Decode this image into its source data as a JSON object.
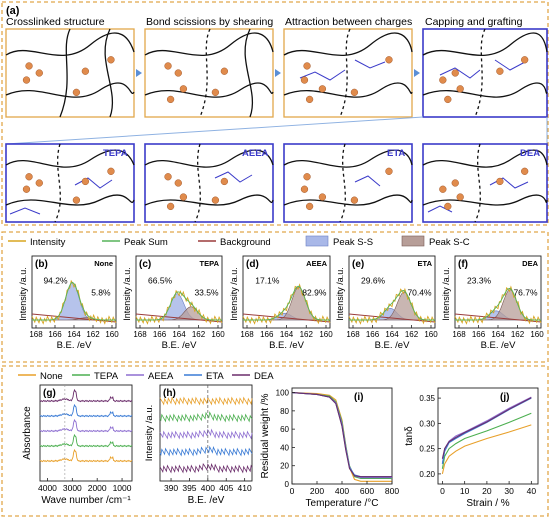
{
  "panel_a": {
    "letter": "(a)",
    "top_titles": [
      "Crosslinked structure",
      "Bond scissions by shearing",
      "Attraction between charges",
      "Capping and grafting"
    ],
    "bottom_labels": [
      "TEPA",
      "AEEA",
      "ETA",
      "DEA"
    ],
    "colors": {
      "frame_orange": "#e1a84a",
      "frame_blue": "#3b3bc9",
      "arrow_blue": "#5b8fd6",
      "bead": "#e08b4c"
    }
  },
  "xps_legend": {
    "items": [
      "Intensity",
      "Peak Sum",
      "Background",
      "Peak S-S",
      "Peak S-C"
    ],
    "colors": [
      "#d9a521",
      "#57b45a",
      "#9b3b3b",
      "#a9b8e8",
      "#b79e98"
    ]
  },
  "xps_panels": [
    {
      "letter": "(b)",
      "name": "None",
      "pct_ss": "94.2%",
      "pct_sc": "5.8%"
    },
    {
      "letter": "(c)",
      "name": "TEPA",
      "pct_ss": "66.5%",
      "pct_sc": "33.5%"
    },
    {
      "letter": "(d)",
      "name": "AEEA",
      "pct_ss": "17.1%",
      "pct_sc": "82.9%"
    },
    {
      "letter": "(e)",
      "name": "ETA",
      "pct_ss": "29.6%",
      "pct_sc": "70.4%"
    },
    {
      "letter": "(f)",
      "name": "DEA",
      "pct_ss": "23.3%",
      "pct_sc": "76.7%"
    }
  ],
  "xps_axis": {
    "ylabel": "Intensity /a.u.",
    "xlabel": "B.E. /eV",
    "ticks": [
      "168",
      "166",
      "164",
      "162",
      "160"
    ]
  },
  "bottom_legend": {
    "items": [
      "None",
      "TEPA",
      "AEEA",
      "ETA",
      "DEA"
    ],
    "colors": [
      "#e8a02a",
      "#4caf50",
      "#8e6fd1",
      "#3a7bd5",
      "#6b2d6b"
    ]
  },
  "chart_data": [
    {
      "type": "line",
      "letter": "(g)",
      "ylabel": "Absorbance",
      "xlabel": "Wave number /cm⁻¹",
      "x_ticks": [
        "4000",
        "3000",
        "2000",
        "1000"
      ],
      "xlim": [
        4300,
        600
      ],
      "series_names": [
        "None",
        "TEPA",
        "AEEA",
        "ETA",
        "DEA"
      ]
    },
    {
      "type": "line",
      "letter": "(h)",
      "ylabel": "Intensity /a.u.",
      "xlabel": "B.E. /eV",
      "x_ticks": [
        "390",
        "395",
        "400",
        "405",
        "410"
      ],
      "xlim": [
        387,
        412
      ]
    },
    {
      "type": "line",
      "letter": "(i)",
      "ylabel": "Residual weight /%",
      "xlabel": "Temperature /°C",
      "x_ticks": [
        "0",
        "200",
        "400",
        "600",
        "800"
      ],
      "y_ticks": [
        "0",
        "20",
        "40",
        "60",
        "80",
        "100"
      ],
      "xlim": [
        0,
        800
      ],
      "ylim": [
        0,
        105
      ],
      "series": [
        {
          "name": "None",
          "x": [
            0,
            200,
            300,
            350,
            400,
            430,
            460,
            500,
            550,
            800
          ],
          "y": [
            100,
            99,
            97,
            92,
            70,
            42,
            18,
            5,
            3,
            3
          ]
        },
        {
          "name": "TEPA",
          "x": [
            0,
            200,
            300,
            350,
            400,
            430,
            460,
            500,
            550,
            800
          ],
          "y": [
            100,
            98,
            96,
            90,
            68,
            42,
            20,
            8,
            6,
            6
          ]
        },
        {
          "name": "AEEA",
          "x": [
            0,
            200,
            300,
            350,
            400,
            430,
            460,
            500,
            550,
            800
          ],
          "y": [
            100,
            98,
            95,
            89,
            66,
            40,
            19,
            9,
            7,
            7
          ]
        },
        {
          "name": "ETA",
          "x": [
            0,
            200,
            300,
            350,
            400,
            430,
            460,
            500,
            550,
            800
          ],
          "y": [
            100,
            98,
            95,
            88,
            64,
            38,
            18,
            10,
            8,
            8
          ]
        },
        {
          "name": "DEA",
          "x": [
            0,
            200,
            300,
            350,
            400,
            430,
            460,
            500,
            550,
            800
          ],
          "y": [
            100,
            98,
            95,
            88,
            63,
            37,
            17,
            9,
            8,
            8
          ]
        }
      ]
    },
    {
      "type": "line",
      "letter": "(j)",
      "ylabel": "tanδ",
      "xlabel": "Strain / %",
      "x_ticks": [
        "0",
        "10",
        "20",
        "30",
        "40"
      ],
      "y_ticks": [
        "0.20",
        "0.25",
        "0.30",
        "0.35"
      ],
      "xlim": [
        -2,
        43
      ],
      "ylim": [
        0.18,
        0.37
      ],
      "series": [
        {
          "name": "None",
          "x": [
            0,
            1,
            3,
            6,
            10,
            20,
            30,
            40
          ],
          "y": [
            0.2,
            0.22,
            0.235,
            0.245,
            0.255,
            0.27,
            0.283,
            0.297
          ]
        },
        {
          "name": "TEPA",
          "x": [
            0,
            1,
            3,
            6,
            10,
            20,
            30,
            40
          ],
          "y": [
            0.21,
            0.235,
            0.25,
            0.26,
            0.27,
            0.285,
            0.302,
            0.32
          ]
        },
        {
          "name": "AEEA",
          "x": [
            0,
            1,
            3,
            6,
            10,
            20,
            30,
            40
          ],
          "y": [
            0.22,
            0.25,
            0.265,
            0.275,
            0.283,
            0.305,
            0.33,
            0.352
          ]
        },
        {
          "name": "ETA",
          "x": [
            0,
            1,
            3,
            6,
            10,
            20,
            30,
            40
          ],
          "y": [
            0.22,
            0.245,
            0.262,
            0.27,
            0.28,
            0.302,
            0.327,
            0.35
          ]
        },
        {
          "name": "DEA",
          "x": [
            0,
            1,
            3,
            6,
            10,
            20,
            30,
            40
          ],
          "y": [
            0.23,
            0.25,
            0.264,
            0.272,
            0.282,
            0.303,
            0.328,
            0.351
          ]
        }
      ]
    }
  ]
}
